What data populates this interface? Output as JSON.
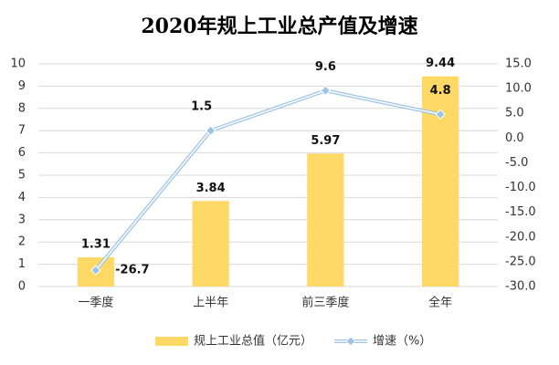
{
  "chart_data": {
    "type": "bar-line",
    "title": "2020年规上工业总产值及增速",
    "categories": [
      "一季度",
      "上半年",
      "前三季度",
      "全年"
    ],
    "series": [
      {
        "name": "规上工业总值（亿元）",
        "type": "bar",
        "color": "#ffd966",
        "values": [
          1.31,
          3.84,
          5.97,
          9.44
        ]
      },
      {
        "name": "增速（%）",
        "type": "line",
        "axis": "y2",
        "color": "#9dc3e6",
        "values": [
          -26.7,
          1.5,
          9.6,
          4.8
        ]
      }
    ],
    "ylim": [
      0,
      10
    ],
    "yticks": [
      0,
      1,
      2,
      3,
      4,
      5,
      6,
      7,
      8,
      9,
      10
    ],
    "y2lim": [
      -30,
      15
    ],
    "y2ticks": [
      {
        "value": 15,
        "label": "15.0"
      },
      {
        "value": 10,
        "label": "10.0"
      },
      {
        "value": 5,
        "label": "5.0"
      },
      {
        "value": 0,
        "label": "0.0"
      },
      {
        "value": -5,
        "label": "-5.0"
      },
      {
        "value": -10,
        "label": "-10.0"
      },
      {
        "value": -15,
        "label": "-15.0"
      },
      {
        "value": -20,
        "label": "-20.0"
      },
      {
        "value": -25,
        "label": "-25.0"
      },
      {
        "value": -30,
        "label": "-30.0"
      }
    ],
    "grid": true,
    "legend": "bottom"
  }
}
